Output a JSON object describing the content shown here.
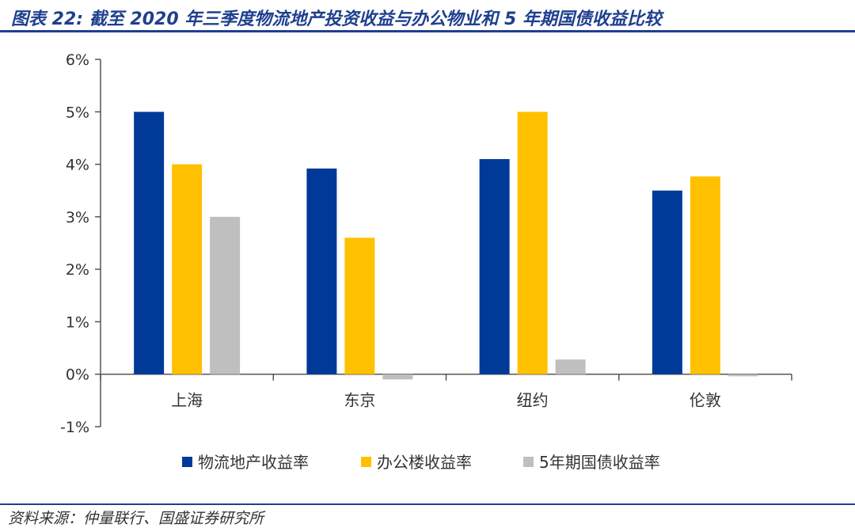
{
  "header": {
    "title": "图表 22: 截至 2020 年三季度物流地产投资收益与办公物业和 5 年期国债收益比较"
  },
  "footer": {
    "source": "资料来源：仲量联行、国盛证券研究所"
  },
  "colors": {
    "accent": "#1f3f8f",
    "series": [
      "#003a98",
      "#ffc000",
      "#bfbfbf"
    ]
  },
  "chart_data": {
    "type": "bar",
    "title": "",
    "xlabel": "",
    "ylabel": "",
    "categories": [
      "上海",
      "东京",
      "纽约",
      "伦敦"
    ],
    "series": [
      {
        "name": "物流地产收益率",
        "values": [
          5.0,
          3.92,
          4.1,
          3.5
        ]
      },
      {
        "name": "办公楼收益率",
        "values": [
          4.0,
          2.6,
          5.0,
          3.77
        ]
      },
      {
        "name": "5年期国债收益率",
        "values": [
          3.0,
          -0.1,
          0.28,
          -0.04
        ]
      }
    ],
    "ylim": [
      -1,
      6
    ],
    "yticks": [
      6,
      5,
      4,
      3,
      2,
      1,
      0,
      -1
    ],
    "ytick_labels": [
      "6%",
      "5%",
      "4%",
      "3%",
      "2%",
      "1%",
      "0%",
      "-1%"
    ],
    "grid": false,
    "legend_position": "bottom"
  }
}
